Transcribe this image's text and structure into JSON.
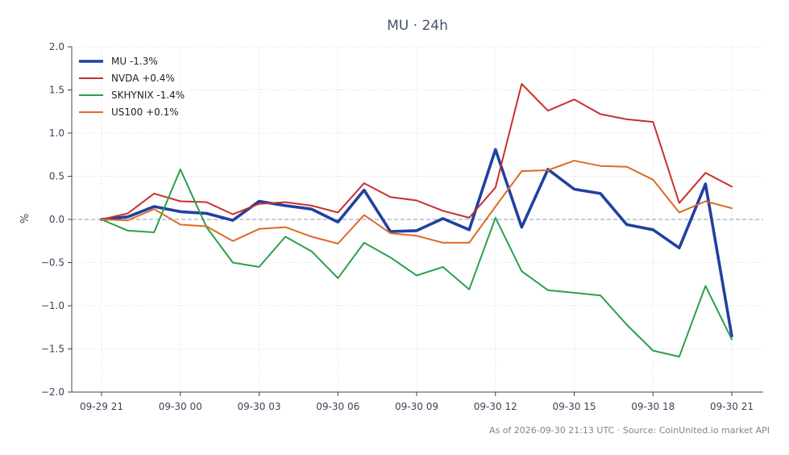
{
  "chart_data": {
    "type": "line",
    "title": "MU · 24h",
    "xlabel": "",
    "ylabel": "%",
    "ylim": [
      -2.0,
      2.0
    ],
    "yticks": [
      2.0,
      1.5,
      1.0,
      0.5,
      0.0,
      -0.5,
      -1.0,
      -1.5,
      -2.0
    ],
    "ytick_labels": [
      "2.0",
      "1.5",
      "1.0",
      "0.5",
      "0.0",
      "−0.5",
      "−1.0",
      "−1.5",
      "−2.0"
    ],
    "x_tick_indices": [
      0,
      3,
      6,
      9,
      12,
      15,
      18,
      21,
      24
    ],
    "x_tick_labels": [
      "09-29 21",
      "09-30 00",
      "09-30 03",
      "09-30 06",
      "09-30 09",
      "09-30 12",
      "09-30 15",
      "09-30 18",
      "09-30 21"
    ],
    "grid": true,
    "zero_line": true,
    "legend_position": "upper-left",
    "x": [
      "09-29 21",
      "09-29 22",
      "09-29 23",
      "09-30 00",
      "09-30 01",
      "09-30 02",
      "09-30 03",
      "09-30 04",
      "09-30 05",
      "09-30 06",
      "09-30 07",
      "09-30 08",
      "09-30 09",
      "09-30 10",
      "09-30 11",
      "09-30 12",
      "09-30 13",
      "09-30 14",
      "09-30 15",
      "09-30 16",
      "09-30 17",
      "09-30 18",
      "09-30 19",
      "09-30 20",
      "09-30 21"
    ],
    "series": [
      {
        "name": "MU -1.3%",
        "color": "#2140a0",
        "width": "thick",
        "values": [
          0.0,
          0.03,
          0.15,
          0.09,
          0.07,
          -0.01,
          0.21,
          0.16,
          0.12,
          -0.03,
          0.34,
          -0.14,
          -0.13,
          0.01,
          -0.12,
          0.81,
          -0.09,
          0.58,
          0.35,
          0.3,
          -0.06,
          -0.12,
          -0.33,
          0.41,
          -1.35
        ]
      },
      {
        "name": "NVDA +0.4%",
        "color": "#c8302f",
        "width": "normal",
        "values": [
          0.0,
          0.07,
          0.3,
          0.21,
          0.2,
          0.06,
          0.18,
          0.2,
          0.16,
          0.08,
          0.42,
          0.26,
          0.22,
          0.1,
          0.02,
          0.37,
          1.57,
          1.26,
          1.39,
          1.22,
          1.16,
          1.13,
          0.19,
          0.54,
          0.38
        ]
      },
      {
        "name": "SKHYNIX -1.4%",
        "color": "#2aa14a",
        "width": "normal",
        "values": [
          0.0,
          -0.13,
          -0.15,
          0.58,
          -0.09,
          -0.5,
          -0.55,
          -0.2,
          -0.37,
          -0.68,
          -0.27,
          -0.44,
          -0.65,
          -0.55,
          -0.81,
          0.02,
          -0.6,
          -0.82,
          -0.85,
          -0.88,
          -1.22,
          -1.52,
          -1.59,
          -0.77,
          -1.39
        ]
      },
      {
        "name": "US100 +0.1%",
        "color": "#df6a26",
        "width": "normal",
        "values": [
          0.0,
          -0.01,
          0.12,
          -0.06,
          -0.08,
          -0.25,
          -0.11,
          -0.09,
          -0.2,
          -0.28,
          0.05,
          -0.16,
          -0.19,
          -0.27,
          -0.27,
          0.15,
          0.56,
          0.57,
          0.68,
          0.62,
          0.61,
          0.46,
          0.08,
          0.21,
          0.13
        ]
      }
    ]
  },
  "footer": "As of 2026-09-30 21:13 UTC · Source: CoinUnited.io market API"
}
